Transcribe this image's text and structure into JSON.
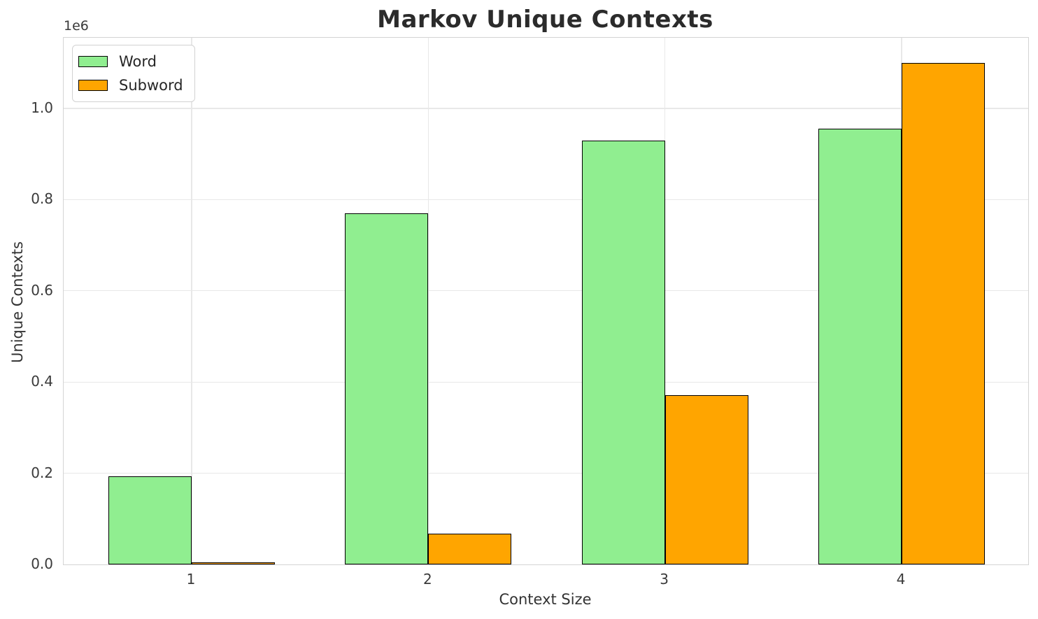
{
  "chart_data": {
    "type": "bar",
    "title": "Markov Unique Contexts",
    "xlabel": "Context Size",
    "ylabel": "Unique Contexts",
    "y_offset_label": "1e6",
    "categories": [
      "1",
      "2",
      "3",
      "4"
    ],
    "series": [
      {
        "name": "Word",
        "color": "#90EE90",
        "values": [
          193000,
          770000,
          930000,
          956000
        ]
      },
      {
        "name": "Subword",
        "color": "#FFA500",
        "values": [
          4000,
          67000,
          371000,
          1100000
        ]
      }
    ],
    "edge_color": "#000000",
    "ylim": [
      0,
      1155000
    ],
    "yticks": {
      "values": [
        0,
        200000,
        400000,
        600000,
        800000,
        1000000
      ],
      "labels": [
        "0.0",
        "0.2",
        "0.4",
        "0.6",
        "0.8",
        "1.0"
      ]
    },
    "grid": true,
    "legend_position": "upper left"
  }
}
